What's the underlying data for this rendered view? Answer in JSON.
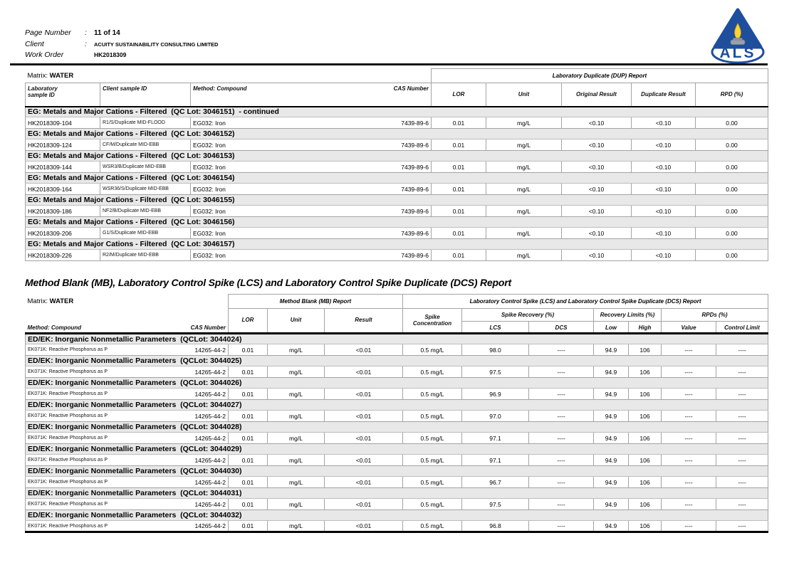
{
  "header": {
    "fields": [
      {
        "label": "Page Number",
        "colon": ":",
        "value": "11 of 14"
      },
      {
        "label": "Client",
        "colon": ":",
        "value": "ACUITY SUSTAINABILITY CONSULTING LIMITED"
      },
      {
        "label": "Work Order",
        "colon": "",
        "value": "HK2018309"
      }
    ],
    "logo_text": "ALS"
  },
  "colors": {
    "logo_blue": "#1e4e9c",
    "flame_yellow": "#ffd42e",
    "section_row_gray": "#e8e8e8"
  },
  "dup_table": {
    "matrix_label": "Matrix:",
    "matrix_value": "WATER",
    "span_header": "Laboratory Duplicate (DUP) Report",
    "columns": {
      "lab_line1": "Laboratory",
      "lab_line2": "sample ID",
      "client": "Client sample ID",
      "method": "Method: Compound",
      "cas": "CAS Number",
      "lor": "LOR",
      "unit": "Unit",
      "original": "Original Result",
      "duplicate": "Duplicate Result",
      "rpd": "RPD (%)"
    },
    "sections": [
      {
        "title": "EG: Metals and Major Cations - Filtered  (QC Lot: 3046151)  - continued",
        "rows": [
          {
            "lab_id": "HK2018309-104",
            "client_id": "R1/S/Duplicate MID-FLOOD",
            "method": "EG032: Iron",
            "cas": "7439-89-6",
            "lor": "0.01",
            "unit": "mg/L",
            "original": "<0.10",
            "duplicate": "<0.10",
            "rpd": "0.00"
          }
        ]
      },
      {
        "title": "EG: Metals and Major Cations - Filtered  (QC Lot: 3046152)",
        "rows": [
          {
            "lab_id": "HK2018309-124",
            "client_id": "CF/M/Duplicate MID-EBB",
            "method": "EG032: Iron",
            "cas": "7439-89-6",
            "lor": "0.01",
            "unit": "mg/L",
            "original": "<0.10",
            "duplicate": "<0.10",
            "rpd": "0.00"
          }
        ]
      },
      {
        "title": "EG: Metals and Major Cations - Filtered  (QC Lot: 3046153)",
        "rows": [
          {
            "lab_id": "HK2018309-144",
            "client_id": "WSR3/B/Duplicate MID-EBB",
            "method": "EG032: Iron",
            "cas": "7439-89-6",
            "lor": "0.01",
            "unit": "mg/L",
            "original": "<0.10",
            "duplicate": "<0.10",
            "rpd": "0.00"
          }
        ]
      },
      {
        "title": "EG: Metals and Major Cations - Filtered  (QC Lot: 3046154)",
        "rows": [
          {
            "lab_id": "HK2018309-164",
            "client_id": "WSR36/S/Duplicate MID-EBB",
            "method": "EG032: Iron",
            "cas": "7439-89-6",
            "lor": "0.01",
            "unit": "mg/L",
            "original": "<0.10",
            "duplicate": "<0.10",
            "rpd": "0.00"
          }
        ]
      },
      {
        "title": "EG: Metals and Major Cations - Filtered  (QC Lot: 3046155)",
        "rows": [
          {
            "lab_id": "HK2018309-186",
            "client_id": "NF2/B/Duplicate MID-EBB",
            "method": "EG032: Iron",
            "cas": "7439-89-6",
            "lor": "0.01",
            "unit": "mg/L",
            "original": "<0.10",
            "duplicate": "<0.10",
            "rpd": "0.00"
          }
        ]
      },
      {
        "title": "EG: Metals and Major Cations - Filtered  (QC Lot: 3046156)",
        "rows": [
          {
            "lab_id": "HK2018309-206",
            "client_id": "G1/S/Duplicate MID-EBB",
            "method": "EG032: Iron",
            "cas": "7439-89-6",
            "lor": "0.01",
            "unit": "mg/L",
            "original": "<0.10",
            "duplicate": "<0.10",
            "rpd": "0.00"
          }
        ]
      },
      {
        "title": "EG: Metals and Major Cations - Filtered  (QC Lot: 3046157)",
        "rows": [
          {
            "lab_id": "HK2018309-226",
            "client_id": "R2/M/Duplicate MID-EBB",
            "method": "EG032: Iron",
            "cas": "7439-89-6",
            "lor": "0.01",
            "unit": "mg/L",
            "original": "<0.10",
            "duplicate": "<0.10",
            "rpd": "0.00"
          }
        ]
      }
    ]
  },
  "mb_report": {
    "title": "Method Blank (MB), Laboratory Control Spike (LCS) and Laboratory Control Spike Duplicate (DCS) Report",
    "matrix_label": "Matrix:",
    "matrix_value": "WATER",
    "mb_header": "Method Blank (MB) Report",
    "lcs_header": "Laboratory Control Spike (LCS) and Laboratory Control Spike Duplicate (DCS) Report",
    "columns": {
      "method": "Method: Compound",
      "cas": "CAS Number",
      "lor": "LOR",
      "unit": "Unit",
      "result": "Result",
      "spike_line1": "Spike",
      "spike_line2": "Concentration",
      "recovery": "Spike Recovery (%)",
      "limits": "Recovery Limits (%)",
      "rpds": "RPDs (%)",
      "lcs": "LCS",
      "dcs": "DCS",
      "low": "Low",
      "high": "High",
      "value": "Value",
      "control": "Control Limit"
    },
    "sections": [
      {
        "title": "ED/EK: Inorganic Nonmetallic Parameters  (QCLot: 3044024)",
        "rows": [
          {
            "method": "EK071K: Reactive Phosphorus as P",
            "cas": "14265-44-2",
            "lor": "0.01",
            "unit": "mg/L",
            "result": "<0.01",
            "spike_conc": "0.5 mg/L",
            "lcs": "98.0",
            "dcs": "----",
            "low": "94.9",
            "high": "106",
            "value": "----",
            "control": "----"
          }
        ]
      },
      {
        "title": "ED/EK: Inorganic Nonmetallic Parameters  (QCLot: 3044025)",
        "rows": [
          {
            "method": "EK071K: Reactive Phosphorus as P",
            "cas": "14265-44-2",
            "lor": "0.01",
            "unit": "mg/L",
            "result": "<0.01",
            "spike_conc": "0.5 mg/L",
            "lcs": "97.5",
            "dcs": "----",
            "low": "94.9",
            "high": "106",
            "value": "----",
            "control": "----"
          }
        ]
      },
      {
        "title": "ED/EK: Inorganic Nonmetallic Parameters  (QCLot: 3044026)",
        "rows": [
          {
            "method": "EK071K: Reactive Phosphorus as P",
            "cas": "14265-44-2",
            "lor": "0.01",
            "unit": "mg/L",
            "result": "<0.01",
            "spike_conc": "0.5 mg/L",
            "lcs": "96.9",
            "dcs": "----",
            "low": "94.9",
            "high": "106",
            "value": "----",
            "control": "----"
          }
        ]
      },
      {
        "title": "ED/EK: Inorganic Nonmetallic Parameters  (QCLot: 3044027)",
        "rows": [
          {
            "method": "EK071K: Reactive Phosphorus as P",
            "cas": "14265-44-2",
            "lor": "0.01",
            "unit": "mg/L",
            "result": "<0.01",
            "spike_conc": "0.5 mg/L",
            "lcs": "97.0",
            "dcs": "----",
            "low": "94.9",
            "high": "106",
            "value": "----",
            "control": "----"
          }
        ]
      },
      {
        "title": "ED/EK: Inorganic Nonmetallic Parameters  (QCLot: 3044028)",
        "rows": [
          {
            "method": "EK071K: Reactive Phosphorus as P",
            "cas": "14265-44-2",
            "lor": "0.01",
            "unit": "mg/L",
            "result": "<0.01",
            "spike_conc": "0.5 mg/L",
            "lcs": "97.1",
            "dcs": "----",
            "low": "94.9",
            "high": "106",
            "value": "----",
            "control": "----"
          }
        ]
      },
      {
        "title": "ED/EK: Inorganic Nonmetallic Parameters  (QCLot: 3044029)",
        "rows": [
          {
            "method": "EK071K: Reactive Phosphorus as P",
            "cas": "14265-44-2",
            "lor": "0.01",
            "unit": "mg/L",
            "result": "<0.01",
            "spike_conc": "0.5 mg/L",
            "lcs": "97.1",
            "dcs": "----",
            "low": "94.9",
            "high": "106",
            "value": "----",
            "control": "----"
          }
        ]
      },
      {
        "title": "ED/EK: Inorganic Nonmetallic Parameters  (QCLot: 3044030)",
        "rows": [
          {
            "method": "EK071K: Reactive Phosphorus as P",
            "cas": "14265-44-2",
            "lor": "0.01",
            "unit": "mg/L",
            "result": "<0.01",
            "spike_conc": "0.5 mg/L",
            "lcs": "96.7",
            "dcs": "----",
            "low": "94.9",
            "high": "106",
            "value": "----",
            "control": "----"
          }
        ]
      },
      {
        "title": "ED/EK: Inorganic Nonmetallic Parameters  (QCLot: 3044031)",
        "rows": [
          {
            "method": "EK071K: Reactive Phosphorus as P",
            "cas": "14265-44-2",
            "lor": "0.01",
            "unit": "mg/L",
            "result": "<0.01",
            "spike_conc": "0.5 mg/L",
            "lcs": "97.5",
            "dcs": "----",
            "low": "94.9",
            "high": "106",
            "value": "----",
            "control": "----"
          }
        ]
      },
      {
        "title": "ED/EK: Inorganic Nonmetallic Parameters  (QCLot: 3044032)",
        "rows": [
          {
            "method": "EK071K: Reactive Phosphorus as P",
            "cas": "14265-44-2",
            "lor": "0.01",
            "unit": "mg/L",
            "result": "<0.01",
            "spike_conc": "0.5 mg/L",
            "lcs": "96.8",
            "dcs": "----",
            "low": "94.9",
            "high": "106",
            "value": "----",
            "control": "----"
          }
        ]
      }
    ]
  }
}
